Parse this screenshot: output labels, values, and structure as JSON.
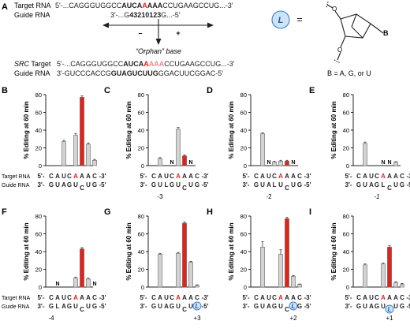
{
  "panel_a": {
    "letter": "A",
    "rows": [
      {
        "label": "Target RNA",
        "segments": [
          {
            "t": "5'-...CAGGGUGGCC",
            "b": false,
            "c": "#231f20"
          },
          {
            "t": "AUCA",
            "b": true,
            "c": "#231f20"
          },
          {
            "t": "A",
            "b": true,
            "c": "#e2231a"
          },
          {
            "t": "AAA",
            "b": true,
            "c": "#231f20"
          },
          {
            "t": "CCUGAAGCCUG...-3'",
            "b": false,
            "c": "#231f20"
          }
        ]
      },
      {
        "label": "Guide RNA",
        "segments": [
          {
            "t": "3'-...G",
            "b": false,
            "c": "#231f20"
          },
          {
            "t": "43210123",
            "b": true,
            "c": "#231f20"
          },
          {
            "t": "G...-5'",
            "b": false,
            "c": "#231f20"
          }
        ]
      }
    ],
    "minus": "–",
    "plus": "+",
    "orphan_label": "“Orphan” base",
    "src_rows": [
      {
        "label": "SRC Target",
        "label_italic_part": "SRC",
        "segments": [
          {
            "t": "5'-...CAGGGUGGCC",
            "b": false,
            "c": "#231f20"
          },
          {
            "t": "AUCA",
            "b": true,
            "c": "#231f20"
          },
          {
            "t": "A",
            "b": true,
            "c": "#e2231a"
          },
          {
            "t": "AAA",
            "b": true,
            "c": "#e58b8b"
          },
          {
            "t": "CCUGAAGCCUG...-3'",
            "b": false,
            "c": "#231f20"
          }
        ]
      },
      {
        "label": "Guide RNA",
        "segments": [
          {
            "t": "3'-GUCCCACCG",
            "b": false,
            "c": "#231f20"
          },
          {
            "t": "GUAGUCUUG",
            "b": true,
            "c": "#231f20"
          },
          {
            "t": "GGACUUCGGAC-5'",
            "b": false,
            "c": "#231f20"
          }
        ]
      }
    ],
    "L_symbol": "L",
    "equals": "=",
    "base_label": "B",
    "base_note": "B = A, G, or U",
    "ring_O_labels": [
      "O",
      "O"
    ]
  },
  "colors": {
    "gray_bar": "#d3d3d3",
    "red_bar": "#e2231a",
    "red_text": "#e2231a",
    "L_fill": "#cfe3f7",
    "L_stroke": "#2f7fd0"
  },
  "chart_data": [
    {
      "panel": "B",
      "type": "bar",
      "ylabel": "% Editing at 60 min",
      "ylim": [
        0,
        80
      ],
      "yticks": [
        "0",
        "20",
        "40",
        "60",
        "80"
      ],
      "values": [
        0,
        27,
        0,
        34,
        77,
        24,
        6
      ],
      "errors": [
        0,
        1.5,
        0,
        2,
        1.5,
        1.5,
        1
      ],
      "na": [],
      "target_row": [
        "5'-",
        "C",
        "A",
        "U",
        "C",
        "A",
        "A",
        "A",
        "C",
        "-3'"
      ],
      "guide_row": [
        "3'-",
        "G",
        "U",
        "A",
        "G",
        "U",
        "C",
        "U",
        "G",
        "-5'"
      ],
      "L_pos": -1,
      "position_label": ""
    },
    {
      "panel": "C",
      "type": "bar",
      "ylabel": "% Editing at 60 min",
      "ylim": [
        0,
        80
      ],
      "yticks": [
        "0",
        "20",
        "40",
        "60",
        "80"
      ],
      "values": [
        8,
        0,
        0,
        41,
        11,
        0,
        0
      ],
      "errors": [
        1,
        0,
        0,
        2,
        1,
        0,
        0
      ],
      "na": [
        2,
        5
      ],
      "target_row": [
        "5'-",
        "C",
        "A",
        "U",
        "C",
        "A",
        "A",
        "A",
        "C",
        "-3'"
      ],
      "guide_row": [
        "3'-",
        "G",
        "U",
        "L",
        "G",
        "U",
        "C",
        "U",
        "G",
        "-5'"
      ],
      "L_pos": 2,
      "position_label": "-3"
    },
    {
      "panel": "D",
      "type": "bar",
      "ylabel": "% Editing at 60 min",
      "ylim": [
        0,
        80
      ],
      "yticks": [
        "0",
        "20",
        "40",
        "60",
        "80"
      ],
      "values": [
        36,
        0,
        4,
        5,
        5,
        0,
        0
      ],
      "errors": [
        1,
        0,
        1,
        1,
        1,
        0,
        0
      ],
      "na": [
        1,
        5
      ],
      "target_row": [
        "5'-",
        "C",
        "A",
        "U",
        "C",
        "A",
        "A",
        "A",
        "C",
        "-3'"
      ],
      "guide_row": [
        "3'-",
        "G",
        "U",
        "A",
        "L",
        "U",
        "C",
        "U",
        "G",
        "-5'"
      ],
      "L_pos": 3,
      "position_label": "-2"
    },
    {
      "panel": "E",
      "type": "bar",
      "ylabel": "% Editing at 60 min",
      "ylim": [
        0,
        80
      ],
      "yticks": [
        "0",
        "20",
        "40",
        "60",
        "80"
      ],
      "values": [
        25,
        0,
        0,
        0,
        0,
        4,
        0
      ],
      "errors": [
        1.5,
        0,
        0,
        0,
        0,
        0.5,
        0
      ],
      "na": [
        3,
        4
      ],
      "target_row": [
        "5'-",
        "C",
        "A",
        "U",
        "C",
        "A",
        "A",
        "A",
        "C",
        "-3'"
      ],
      "guide_row": [
        "3'-",
        "G",
        "U",
        "A",
        "G",
        "L",
        "C",
        "U",
        "G",
        "-5'"
      ],
      "L_pos": 4,
      "position_label": "-1"
    },
    {
      "panel": "F",
      "type": "bar",
      "ylabel": "% Editing at 60 min",
      "ylim": [
        0,
        80
      ],
      "yticks": [
        "0",
        "20",
        "40",
        "60",
        "80"
      ],
      "values": [
        0,
        0,
        0,
        10,
        43,
        9,
        0
      ],
      "errors": [
        0,
        0,
        0,
        1,
        1.5,
        1,
        0
      ],
      "na": [
        0,
        6
      ],
      "target_row": [
        "5'-",
        "C",
        "A",
        "U",
        "C",
        "A",
        "A",
        "A",
        "C",
        "-3'"
      ],
      "guide_row": [
        "3'-",
        "G",
        "L",
        "A",
        "G",
        "U",
        "C",
        "U",
        "G",
        "-5'"
      ],
      "L_pos": 1,
      "position_label": "-4"
    },
    {
      "panel": "G",
      "type": "bar",
      "ylabel": "% Editing at 60 min",
      "ylim": [
        0,
        80
      ],
      "yticks": [
        "0",
        "20",
        "40",
        "60",
        "80"
      ],
      "values": [
        37,
        0,
        0,
        38,
        72,
        28,
        2
      ],
      "errors": [
        1,
        0,
        0,
        1,
        1.5,
        1,
        0.5
      ],
      "na": [],
      "target_row": [
        "5'-",
        "C",
        "A",
        "U",
        "C",
        "A",
        "A",
        "A",
        "C",
        "-3'"
      ],
      "guide_row": [
        "3'-",
        "G",
        "U",
        "A",
        "G",
        "U",
        "C",
        "U",
        "L",
        "-5'"
      ],
      "L_pos": 8,
      "position_label": "+3"
    },
    {
      "panel": "H",
      "type": "bar",
      "ylabel": "% Editing at 60 min",
      "ylim": [
        0,
        80
      ],
      "yticks": [
        "0",
        "20",
        "40",
        "60",
        "80"
      ],
      "values": [
        45,
        0,
        0,
        37,
        77,
        12,
        3
      ],
      "errors": [
        6,
        0,
        0,
        5,
        1.5,
        1,
        0.5
      ],
      "na": [],
      "target_row": [
        "5'-",
        "C",
        "A",
        "U",
        "C",
        "A",
        "A",
        "A",
        "C",
        "-3'"
      ],
      "guide_row": [
        "3'-",
        "G",
        "U",
        "A",
        "G",
        "U",
        "C",
        "L",
        "G",
        "-5'"
      ],
      "L_pos": 7,
      "position_label": "+2"
    },
    {
      "panel": "I",
      "type": "bar",
      "ylabel": "% Editing at 60 min",
      "ylim": [
        0,
        80
      ],
      "yticks": [
        "0",
        "20",
        "40",
        "60",
        "80"
      ],
      "values": [
        25,
        0,
        0,
        26,
        45,
        5,
        3
      ],
      "errors": [
        1,
        0,
        0,
        1,
        1.5,
        1,
        1
      ],
      "na": [],
      "target_row": [
        "5'-",
        "C",
        "A",
        "U",
        "C",
        "A",
        "A",
        "A",
        "C",
        "-3'"
      ],
      "guide_row": [
        "3'-",
        "G",
        "U",
        "A",
        "G",
        "U",
        "L",
        "U",
        "G",
        "-5'"
      ],
      "L_pos": 6,
      "position_label": "+1"
    }
  ],
  "row_labels": {
    "target": "Target RNA",
    "guide": "Guide RNA"
  },
  "na_mark": "N"
}
